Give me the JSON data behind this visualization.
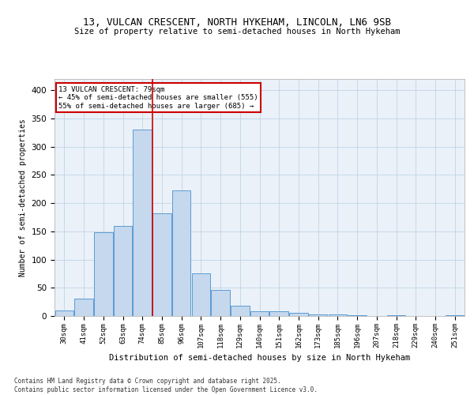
{
  "title": "13, VULCAN CRESCENT, NORTH HYKEHAM, LINCOLN, LN6 9SB",
  "subtitle": "Size of property relative to semi-detached houses in North Hykeham",
  "xlabel": "Distribution of semi-detached houses by size in North Hykeham",
  "ylabel": "Number of semi-detached properties",
  "categories": [
    "30sqm",
    "41sqm",
    "52sqm",
    "63sqm",
    "74sqm",
    "85sqm",
    "96sqm",
    "107sqm",
    "118sqm",
    "129sqm",
    "140sqm",
    "151sqm",
    "162sqm",
    "173sqm",
    "185sqm",
    "196sqm",
    "207sqm",
    "218sqm",
    "229sqm",
    "240sqm",
    "251sqm"
  ],
  "values": [
    10,
    31,
    148,
    160,
    330,
    182,
    222,
    75,
    46,
    18,
    8,
    8,
    5,
    3,
    3,
    1,
    0,
    1,
    0,
    0,
    1
  ],
  "bar_color": "#c5d8ed",
  "bar_edge_color": "#5b9bd5",
  "vline_x": 4.5,
  "vline_color": "#cc0000",
  "annotation_title": "13 VULCAN CRESCENT: 79sqm",
  "annotation_line1": "← 45% of semi-detached houses are smaller (555)",
  "annotation_line2": "55% of semi-detached houses are larger (685) →",
  "annotation_box_color": "#ffffff",
  "annotation_box_edgecolor": "#cc0000",
  "footnote1": "Contains HM Land Registry data © Crown copyright and database right 2025.",
  "footnote2": "Contains public sector information licensed under the Open Government Licence v3.0.",
  "ylim": [
    0,
    420
  ],
  "plot_bg_color": "#eaf1f9"
}
